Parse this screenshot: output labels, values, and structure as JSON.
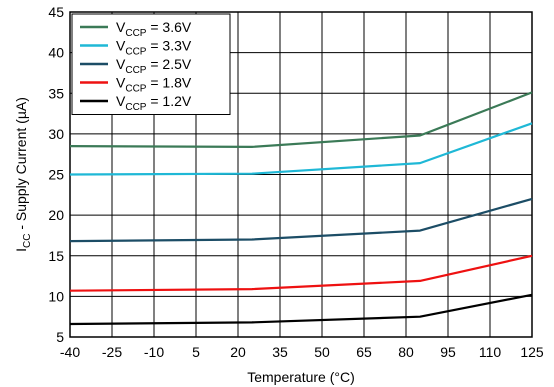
{
  "chart_data": {
    "type": "line",
    "xlabel": "Temperature (°C)",
    "ylabel": "I_CC - Supply Current (µA)",
    "ylabel_parts": {
      "main": "I",
      "sub": "CC",
      "rest": " - Supply Current (µA)"
    },
    "x_tick_labels": [
      "-40",
      "-25",
      "-10",
      "5",
      "20",
      "35",
      "50",
      "65",
      "80",
      "95",
      "110",
      "125"
    ],
    "y_ticks": [
      5,
      10,
      15,
      20,
      25,
      30,
      35,
      40,
      45
    ],
    "ylim": [
      5,
      45
    ],
    "grid": true,
    "legend_position": "top-left",
    "series": [
      {
        "name": "V_CCP = 3.6V",
        "legend": {
          "main": "V",
          "sub": "CCP",
          "rest": " = 3.6V"
        },
        "color": "#3b7a57",
        "x": [
          -40,
          25,
          85,
          125
        ],
        "y": [
          28.5,
          28.4,
          29.8,
          35.1
        ]
      },
      {
        "name": "V_CCP = 3.3V",
        "legend": {
          "main": "V",
          "sub": "CCP",
          "rest": " = 3.3V"
        },
        "color": "#1fb8d6",
        "x": [
          -40,
          25,
          85,
          125
        ],
        "y": [
          25.0,
          25.1,
          26.4,
          31.3
        ]
      },
      {
        "name": "V_CCP = 2.5V",
        "legend": {
          "main": "V",
          "sub": "CCP",
          "rest": " = 2.5V"
        },
        "color": "#1c4d66",
        "x": [
          -40,
          25,
          85,
          125
        ],
        "y": [
          16.8,
          17.0,
          18.1,
          22.0
        ]
      },
      {
        "name": "V_CCP = 1.8V",
        "legend": {
          "main": "V",
          "sub": "CCP",
          "rest": " = 1.8V"
        },
        "color": "#ee1111",
        "x": [
          -40,
          25,
          85,
          125
        ],
        "y": [
          10.7,
          10.9,
          11.9,
          15.0
        ]
      },
      {
        "name": "V_CCP = 1.2V",
        "legend": {
          "main": "V",
          "sub": "CCP",
          "rest": " = 1.2V"
        },
        "color": "#000000",
        "x": [
          -40,
          25,
          85,
          125
        ],
        "y": [
          6.6,
          6.8,
          7.5,
          10.2
        ]
      }
    ]
  }
}
